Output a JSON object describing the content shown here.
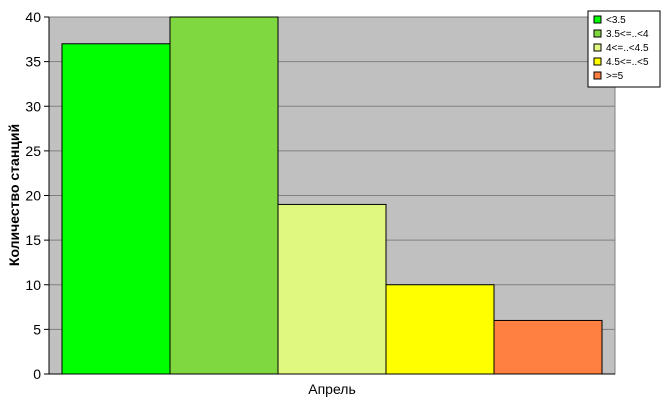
{
  "chart_data": {
    "type": "bar",
    "ylabel": "Количество станций",
    "categories": [
      "Апрель"
    ],
    "ylim": [
      0,
      40
    ],
    "yticks": [
      0,
      5,
      10,
      15,
      20,
      25,
      30,
      35,
      40
    ],
    "grid": true,
    "legend_position": "top-right",
    "background_color": "#c0c0c0",
    "series": [
      {
        "name": "<3.5",
        "values": [
          37
        ],
        "color": "#00ff00"
      },
      {
        "name": "3.5<=..<4",
        "values": [
          40
        ],
        "color": "#80d840"
      },
      {
        "name": "4<=..<4.5",
        "values": [
          19
        ],
        "color": "#e0f880"
      },
      {
        "name": "4.5<=..<5",
        "values": [
          10
        ],
        "color": "#ffff00"
      },
      {
        "name": ">=5",
        "values": [
          6
        ],
        "color": "#ff8040"
      }
    ]
  }
}
